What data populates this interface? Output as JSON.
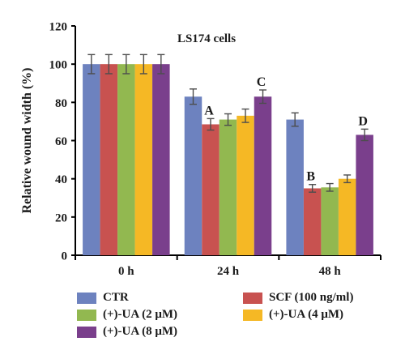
{
  "chart_data": {
    "type": "bar",
    "title": "LS174 cells",
    "xlabel": "",
    "ylabel": "Relative wound width (%)",
    "ylim": [
      0,
      120
    ],
    "yticks": [
      "0",
      "20",
      "40",
      "60",
      "80",
      "100",
      "120"
    ],
    "categories": [
      "0 h",
      "24 h",
      "48 h"
    ],
    "series": [
      {
        "name": "CTR",
        "color": "#6d82bf",
        "values": [
          100,
          83,
          71
        ],
        "errors": [
          5,
          4,
          3.5
        ]
      },
      {
        "name": "SCF (100 ng/ml)",
        "color": "#c85250",
        "values": [
          100,
          68.5,
          35
        ],
        "errors": [
          5,
          3,
          2
        ]
      },
      {
        "name": "(+)-UA (2 μM)",
        "color": "#92b850",
        "values": [
          100,
          71,
          35.5
        ],
        "errors": [
          5,
          3,
          2
        ]
      },
      {
        "name": "(+)-UA (4 μM)",
        "color": "#f5b825",
        "values": [
          100,
          73,
          40
        ],
        "errors": [
          5,
          3.5,
          2
        ]
      },
      {
        "name": "(+)-UA (8 μM)",
        "color": "#7a3f8c",
        "values": [
          100,
          83,
          63
        ],
        "errors": [
          5,
          3.5,
          3
        ]
      }
    ],
    "annotations": [
      {
        "text": "A",
        "category": "24 h",
        "series": "SCF (100 ng/ml)"
      },
      {
        "text": "C",
        "category": "24 h",
        "series": "(+)-UA (8 μM)"
      },
      {
        "text": "B",
        "category": "48 h",
        "series": "SCF (100 ng/ml)"
      },
      {
        "text": "D",
        "category": "48 h",
        "series": "(+)-UA (8 μM)"
      }
    ],
    "grid": false,
    "legend_position": "bottom"
  }
}
